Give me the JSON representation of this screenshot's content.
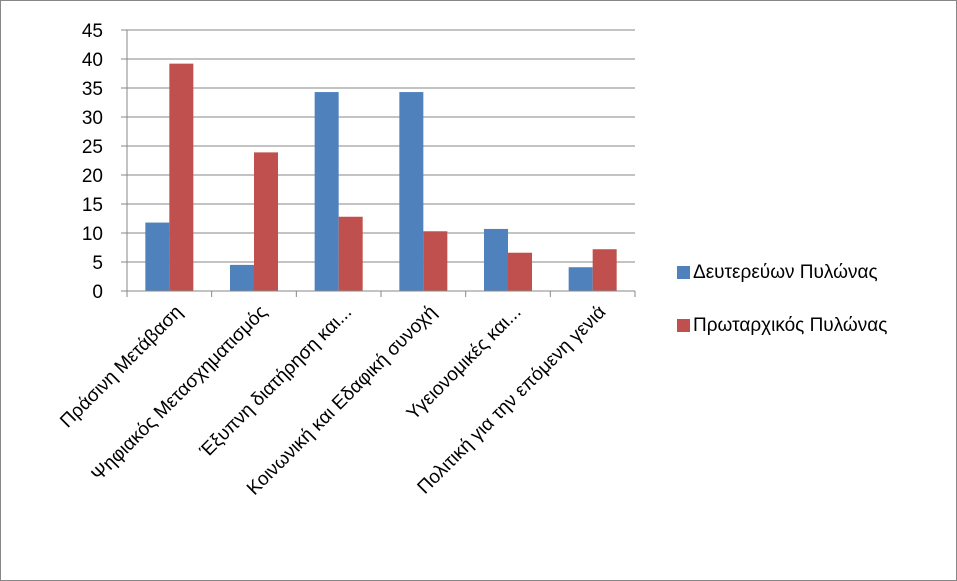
{
  "chart_data": {
    "type": "bar",
    "categories": [
      "Πράσινη Μετάβαση",
      "Ψηφιακός Μετασχηματισμός",
      "Έξυπνη διατήρηση και...",
      "Κοινωνική και Εδαφική συνοχή",
      "Υγειονομικές και...",
      "Πολιτική για την επόμενη γενιά"
    ],
    "series": [
      {
        "name": "Δευτερεύων Πυλώνας",
        "color": "#4F81BD",
        "values": [
          11.8,
          4.5,
          34.3,
          34.3,
          10.7,
          4.1
        ]
      },
      {
        "name": "Πρωταρχικός Πυλώνας",
        "color": "#C0504D",
        "values": [
          39.2,
          23.9,
          12.8,
          10.3,
          6.6,
          7.2
        ]
      }
    ],
    "yticks": [
      0,
      5,
      10,
      15,
      20,
      25,
      30,
      35,
      40,
      45
    ],
    "ylim": [
      0,
      45
    ],
    "grid": true,
    "legend_position": "right",
    "gridline_color": "#878787",
    "axis_color": "#878787"
  }
}
